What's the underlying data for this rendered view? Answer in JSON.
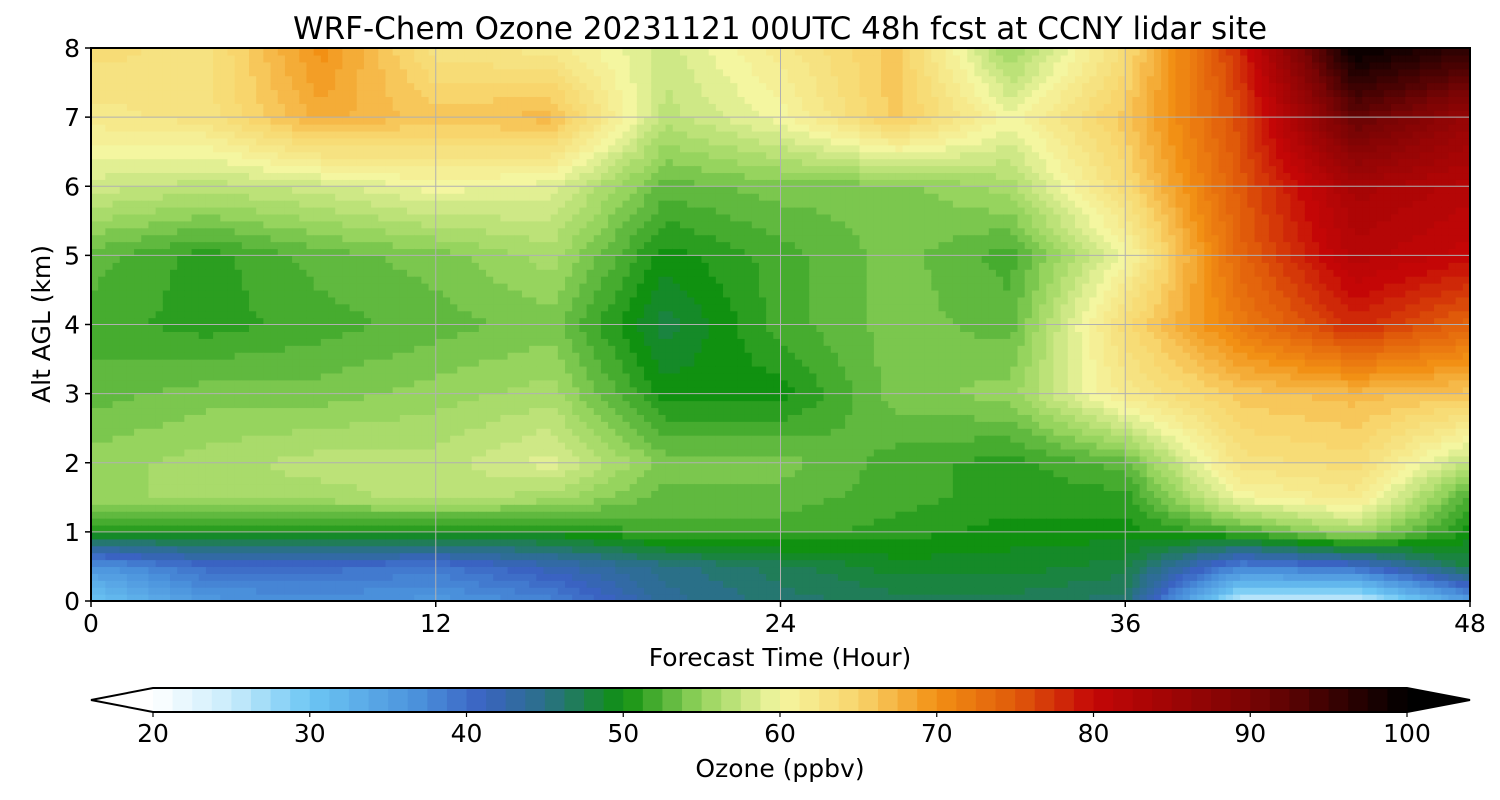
{
  "chart_data": {
    "type": "heatmap",
    "title": "WRF-Chem Ozone  20231121 00UTC 48h fcst at CCNY lidar site",
    "xlabel": "Forecast Time (Hour)",
    "ylabel": "Alt AGL (km)",
    "xlim": [
      0,
      48
    ],
    "ylim": [
      0,
      8
    ],
    "xticks": [
      0,
      12,
      24,
      36,
      48
    ],
    "xtick_labels": [
      "0",
      "12",
      "24",
      "36",
      "48"
    ],
    "yticks": [
      0,
      1,
      2,
      3,
      4,
      5,
      6,
      7,
      8
    ],
    "ytick_labels": [
      "0",
      "1",
      "2",
      "3",
      "4",
      "5",
      "6",
      "7",
      "8"
    ],
    "grid": true,
    "x": [
      0,
      4,
      8,
      12,
      16,
      20,
      24,
      28,
      32,
      36,
      40,
      44,
      48
    ],
    "y": [
      0,
      0.5,
      1,
      1.5,
      2,
      3,
      4,
      5,
      6,
      7,
      8
    ],
    "z": [
      [
        30,
        36,
        37,
        36,
        38,
        44,
        46,
        47,
        47,
        46,
        25,
        24,
        35
      ],
      [
        36,
        40,
        40,
        39,
        42,
        45,
        47,
        49,
        49,
        48,
        38,
        40,
        48
      ],
      [
        50,
        50,
        50,
        50,
        50,
        52,
        52,
        51,
        50,
        50,
        52,
        56,
        50
      ],
      [
        55,
        56,
        56,
        57,
        56,
        53,
        53,
        52,
        51,
        51,
        60,
        62,
        52
      ],
      [
        55,
        56,
        57,
        57,
        59,
        54,
        54,
        52,
        51,
        53,
        63,
        64,
        57
      ],
      [
        53,
        54,
        54,
        55,
        56,
        50,
        50,
        54,
        55,
        62,
        66,
        67,
        66
      ],
      [
        52,
        51,
        52,
        53,
        54,
        48,
        52,
        54,
        53,
        64,
        72,
        78,
        74
      ],
      [
        53,
        51,
        53,
        54,
        56,
        50,
        52,
        54,
        52,
        60,
        74,
        82,
        80
      ],
      [
        58,
        57,
        58,
        60,
        59,
        53,
        54,
        54,
        56,
        64,
        75,
        84,
        82
      ],
      [
        62,
        63,
        68,
        66,
        67,
        57,
        60,
        66,
        60,
        66,
        76,
        92,
        86
      ],
      [
        64,
        63,
        70,
        63,
        62,
        58,
        62,
        66,
        55,
        64,
        78,
        100,
        96
      ]
    ],
    "colorbar": {
      "label": "Ozone  (ppbv)",
      "min": 20,
      "max": 100,
      "ticks": [
        20,
        30,
        40,
        50,
        60,
        70,
        80,
        90,
        100
      ],
      "tick_labels": [
        "20",
        "30",
        "40",
        "50",
        "60",
        "70",
        "80",
        "90",
        "100"
      ],
      "extend": "both",
      "stops": [
        {
          "v": 20,
          "c": "#ffffff"
        },
        {
          "v": 25,
          "c": "#c8ecfb"
        },
        {
          "v": 30,
          "c": "#6cc6f4"
        },
        {
          "v": 37,
          "c": "#4a90db"
        },
        {
          "v": 41,
          "c": "#3a63c2"
        },
        {
          "v": 45,
          "c": "#2a7088"
        },
        {
          "v": 50,
          "c": "#109110"
        },
        {
          "v": 55,
          "c": "#96d45e"
        },
        {
          "v": 60,
          "c": "#f4f6a0"
        },
        {
          "v": 65,
          "c": "#f8d56c"
        },
        {
          "v": 70,
          "c": "#f29014"
        },
        {
          "v": 75,
          "c": "#e05a0a"
        },
        {
          "v": 80,
          "c": "#c40606"
        },
        {
          "v": 90,
          "c": "#7a0404"
        },
        {
          "v": 100,
          "c": "#000000"
        }
      ]
    }
  }
}
